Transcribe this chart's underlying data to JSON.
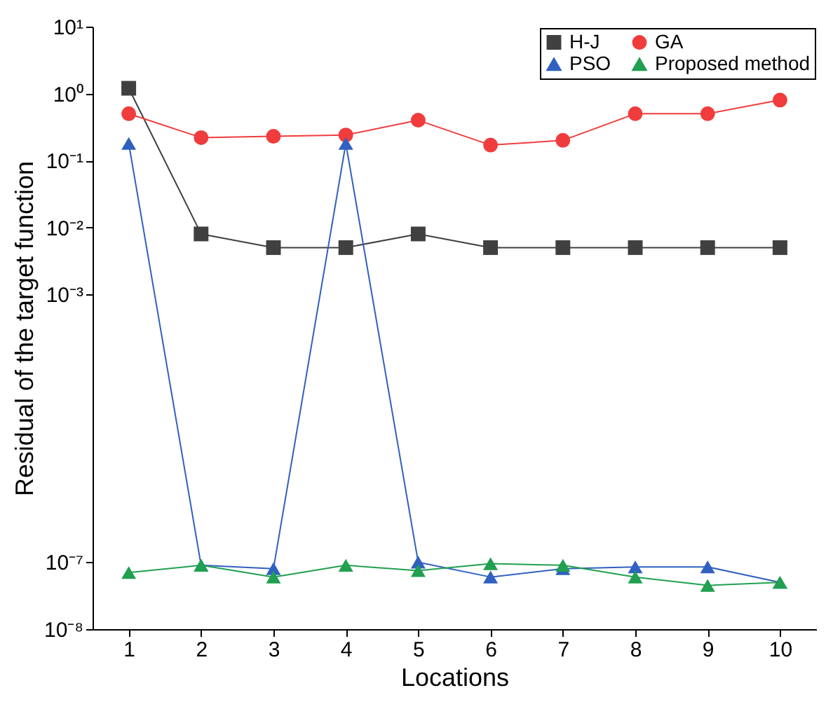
{
  "chart_data": {
    "type": "line",
    "xlabel": "Locations",
    "ylabel": "Residual of the target function",
    "x": [
      1,
      2,
      3,
      4,
      5,
      6,
      7,
      8,
      9,
      10
    ],
    "series": [
      {
        "name": "H-J",
        "color": "#404040",
        "marker": "square",
        "values": [
          1.2,
          0.008,
          0.005,
          0.005,
          0.008,
          0.005,
          0.005,
          0.005,
          0.005,
          0.005
        ]
      },
      {
        "name": "GA",
        "color": "#f03c3c",
        "marker": "circle",
        "values": [
          0.5,
          0.22,
          0.23,
          0.24,
          0.4,
          0.17,
          0.2,
          0.5,
          0.5,
          0.8
        ]
      },
      {
        "name": "PSO",
        "color": "#3060c0",
        "marker": "triangle",
        "values": [
          0.18,
          9e-08,
          8e-08,
          0.18,
          1e-07,
          6e-08,
          8e-08,
          8.5e-08,
          8.5e-08,
          5e-08
        ]
      },
      {
        "name": "Proposed method",
        "color": "#20a050",
        "marker": "triangle",
        "values": [
          7e-08,
          9e-08,
          6e-08,
          9e-08,
          7.5e-08,
          9.5e-08,
          9e-08,
          6e-08,
          4.5e-08,
          5e-08
        ]
      }
    ],
    "log": "y",
    "xlim": [
      0.5,
      10.5
    ],
    "xticks": [
      1,
      2,
      3,
      4,
      5,
      6,
      7,
      8,
      9,
      10
    ],
    "ylim": [
      1e-08,
      10
    ],
    "yticks": [
      {
        "value": 1e-08,
        "label": "10⁻⁸"
      },
      {
        "value": 1e-07,
        "label": "10⁻⁷"
      },
      {
        "value": 0.001,
        "label": "10⁻³"
      },
      {
        "value": 0.01,
        "label": "10⁻²"
      },
      {
        "value": 0.1,
        "label": "10⁻¹"
      },
      {
        "value": 1,
        "label": "10⁰"
      },
      {
        "value": 10,
        "label": "10¹"
      }
    ],
    "grid": false,
    "legend": "top right",
    "line_style": "solid"
  }
}
